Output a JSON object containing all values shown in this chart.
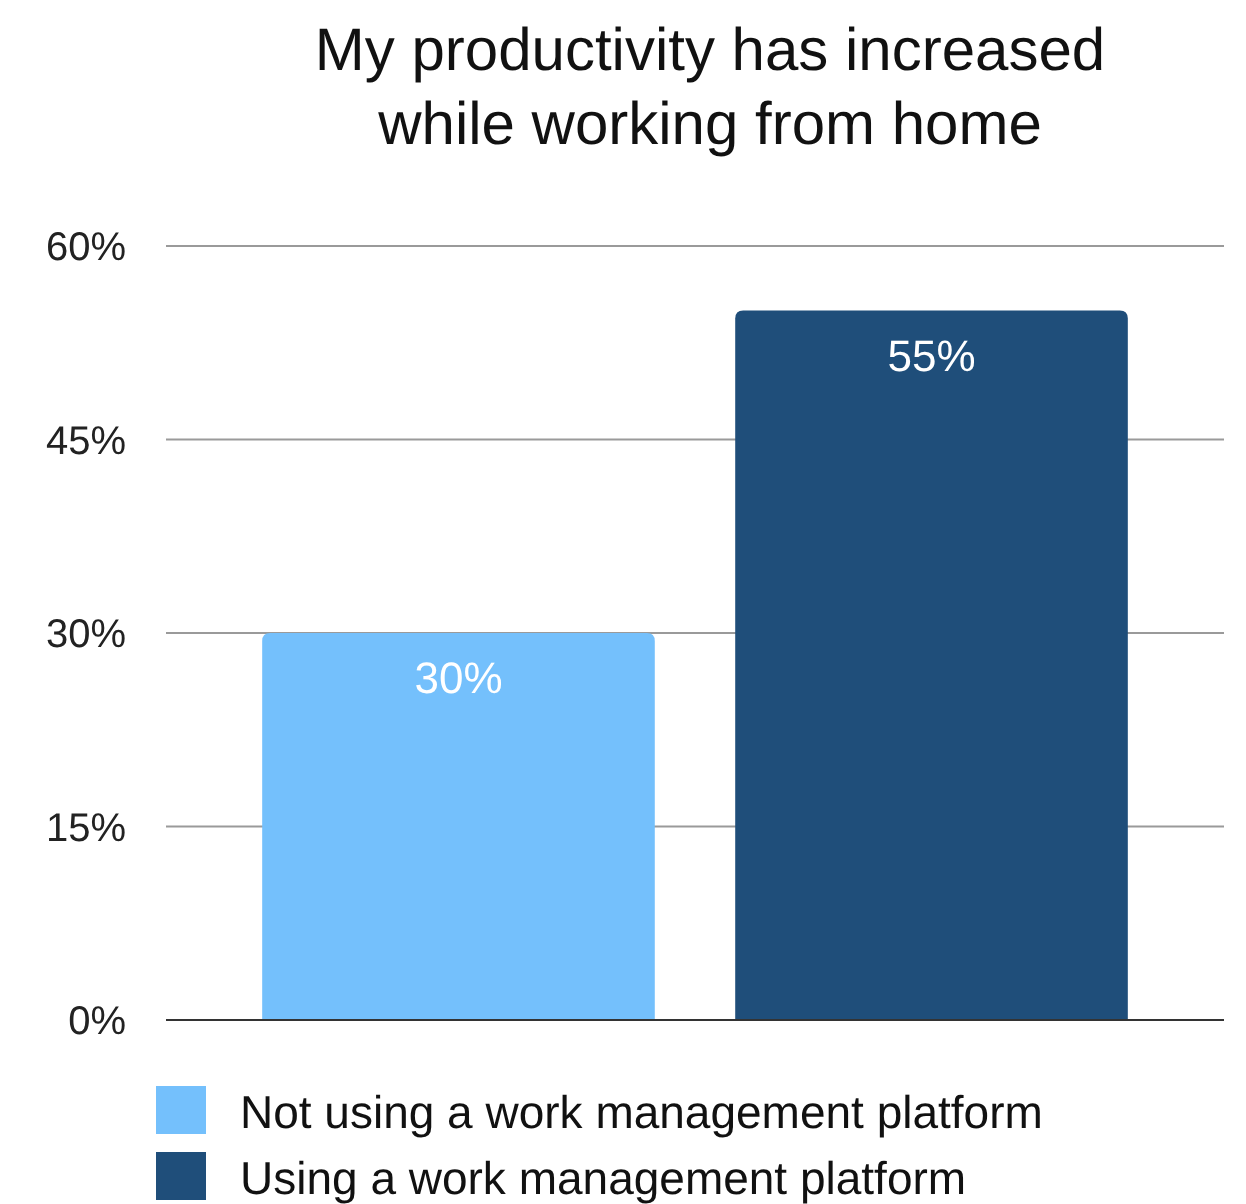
{
  "chart_data": {
    "type": "bar",
    "title": "My productivity has increased\nwhile working from home",
    "categories": [
      null
    ],
    "series": [
      {
        "name": "Not using a work management platform",
        "color": "#74c0fc",
        "values": [
          30
        ],
        "value_labels": [
          "30%"
        ]
      },
      {
        "name": "Using a work management platform",
        "color": "#1f4e7a",
        "values": [
          55
        ],
        "value_labels": [
          "55%"
        ]
      }
    ],
    "ylim": [
      0,
      60
    ],
    "yticks": [
      {
        "value": 0,
        "label": "0%"
      },
      {
        "value": 15,
        "label": "15%"
      },
      {
        "value": 30,
        "label": "30%"
      },
      {
        "value": 45,
        "label": "45%"
      },
      {
        "value": 60,
        "label": "60%"
      }
    ],
    "grid": "y",
    "legend": "bottom"
  }
}
